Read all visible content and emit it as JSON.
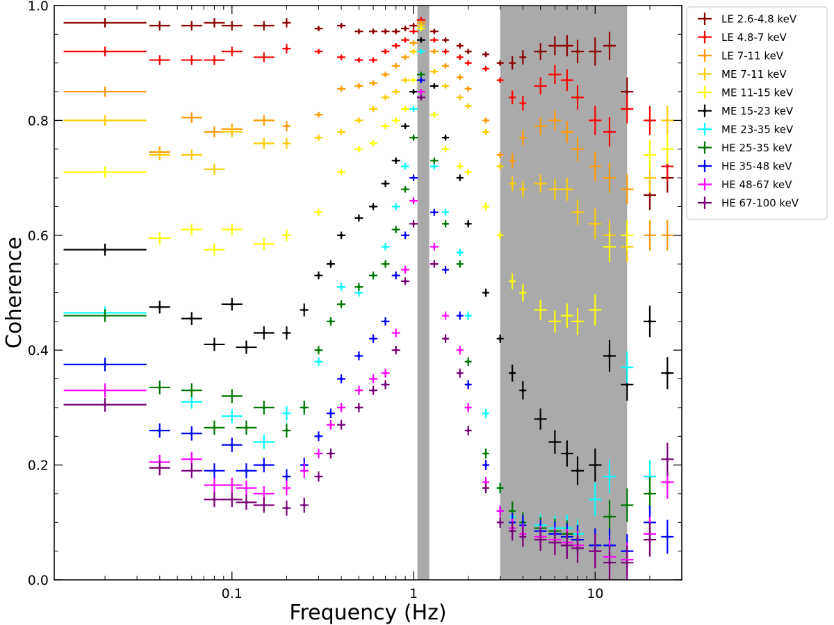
{
  "chart_data": {
    "type": "scatter",
    "xscale": "log",
    "xlabel": "Frequency (Hz)",
    "ylabel": "Coherence",
    "xlim": [
      0.0105,
      30
    ],
    "ylim": [
      0.0,
      1.0
    ],
    "x_ticks": [
      {
        "value": 0.1,
        "label": "0.1"
      },
      {
        "value": 1,
        "label": "1"
      },
      {
        "value": 10,
        "label": "10"
      }
    ],
    "y_ticks": [
      {
        "value": 0.0,
        "label": "0.0"
      },
      {
        "value": 0.2,
        "label": "0.2"
      },
      {
        "value": 0.4,
        "label": "0.4"
      },
      {
        "value": 0.6,
        "label": "0.6"
      },
      {
        "value": 0.8,
        "label": "0.8"
      },
      {
        "value": 1.0,
        "label": "1.0"
      }
    ],
    "shaded_bands": [
      {
        "x_from": 1.05,
        "x_to": 1.22,
        "color": "#aaaaaa"
      },
      {
        "x_from": 3.0,
        "x_to": 15.0,
        "color": "#aaaaaa"
      }
    ],
    "legend_position": "upper right, outside axes",
    "series": [
      {
        "name": "LE 2.6-4.8 keV",
        "color": "#8b0000",
        "x": [
          0.02,
          0.04,
          0.06,
          0.08,
          0.1,
          0.15,
          0.2,
          0.3,
          0.4,
          0.5,
          0.6,
          0.7,
          0.8,
          0.9,
          1.0,
          1.1,
          1.3,
          1.5,
          1.8,
          2.0,
          2.5,
          3.0,
          3.5,
          4.0,
          5.0,
          6.0,
          7.0,
          8.0,
          10,
          12,
          15,
          20,
          25
        ],
        "y": [
          0.97,
          0.965,
          0.965,
          0.97,
          0.965,
          0.965,
          0.97,
          0.96,
          0.965,
          0.955,
          0.955,
          0.955,
          0.955,
          0.96,
          0.965,
          0.975,
          0.955,
          0.94,
          0.93,
          0.92,
          0.915,
          0.9,
          0.9,
          0.91,
          0.92,
          0.93,
          0.93,
          0.92,
          0.92,
          0.93,
          0.85,
          0.67,
          0.7
        ]
      },
      {
        "name": "LE 4.8-7 keV",
        "color": "#ff0000",
        "x": [
          0.02,
          0.04,
          0.06,
          0.08,
          0.1,
          0.15,
          0.2,
          0.3,
          0.4,
          0.5,
          0.6,
          0.7,
          0.8,
          0.9,
          1.0,
          1.1,
          1.3,
          1.5,
          1.8,
          2.0,
          2.5,
          3.0,
          3.5,
          4.0,
          5.0,
          6.0,
          7.0,
          8.0,
          10,
          12,
          15,
          20,
          25
        ],
        "y": [
          0.92,
          0.905,
          0.905,
          0.905,
          0.92,
          0.91,
          0.925,
          0.92,
          0.91,
          0.905,
          0.905,
          0.92,
          0.93,
          0.94,
          0.955,
          0.975,
          0.94,
          0.92,
          0.91,
          0.9,
          0.89,
          0.87,
          0.84,
          0.83,
          0.86,
          0.88,
          0.87,
          0.84,
          0.8,
          0.78,
          0.82,
          0.8,
          0.72
        ]
      },
      {
        "name": "LE 7-11 keV",
        "color": "#ff9900",
        "x": [
          0.02,
          0.04,
          0.06,
          0.08,
          0.1,
          0.15,
          0.2,
          0.3,
          0.4,
          0.5,
          0.6,
          0.7,
          0.8,
          0.9,
          1.0,
          1.1,
          1.3,
          1.5,
          1.8,
          2.0,
          2.5,
          3.0,
          3.5,
          4.0,
          5.0,
          6.0,
          7.0,
          8.0,
          10,
          12,
          15,
          20,
          25
        ],
        "y": [
          0.85,
          0.745,
          0.805,
          0.78,
          0.785,
          0.8,
          0.79,
          0.81,
          0.855,
          0.86,
          0.865,
          0.88,
          0.895,
          0.91,
          0.935,
          0.97,
          0.92,
          0.895,
          0.875,
          0.855,
          0.8,
          0.74,
          0.73,
          0.77,
          0.79,
          0.8,
          0.78,
          0.75,
          0.72,
          0.7,
          0.68,
          0.6,
          0.6
        ]
      },
      {
        "name": "ME 7-11 keV",
        "color": "#ffcc00",
        "x": [
          0.02,
          0.04,
          0.06,
          0.08,
          0.1,
          0.15,
          0.2,
          0.3,
          0.4,
          0.5,
          0.6,
          0.7,
          0.8,
          0.9,
          1.0,
          1.1,
          1.3,
          1.5,
          1.8,
          2.0,
          2.5,
          3.0,
          3.5,
          4.0,
          5.0,
          6.0,
          7.0,
          8.0,
          10,
          12,
          15,
          20,
          25
        ],
        "y": [
          0.8,
          0.74,
          0.74,
          0.715,
          0.78,
          0.76,
          0.76,
          0.77,
          0.78,
          0.8,
          0.82,
          0.84,
          0.85,
          0.87,
          0.92,
          0.965,
          0.885,
          0.86,
          0.84,
          0.825,
          0.78,
          0.72,
          0.69,
          0.68,
          0.69,
          0.68,
          0.68,
          0.64,
          0.62,
          0.6,
          0.58,
          0.7,
          0.8
        ]
      },
      {
        "name": "ME 11-15 keV",
        "color": "#ffff00",
        "x": [
          0.02,
          0.04,
          0.06,
          0.08,
          0.1,
          0.15,
          0.2,
          0.3,
          0.4,
          0.5,
          0.6,
          0.7,
          0.8,
          0.9,
          1.0,
          1.1,
          1.3,
          1.5,
          1.8,
          2.0,
          2.5,
          3.0,
          3.5,
          4.0,
          5.0,
          6.0,
          7.0,
          8.0,
          10,
          12,
          15,
          20,
          25
        ],
        "y": [
          0.71,
          0.595,
          0.61,
          0.575,
          0.61,
          0.585,
          0.6,
          0.64,
          0.71,
          0.75,
          0.76,
          0.79,
          0.8,
          0.82,
          0.87,
          0.96,
          0.81,
          0.75,
          0.72,
          0.71,
          0.65,
          0.6,
          0.52,
          0.5,
          0.47,
          0.45,
          0.46,
          0.45,
          0.47,
          0.58,
          0.6,
          0.74,
          0.75
        ]
      },
      {
        "name": "ME 15-23 keV",
        "color": "#000000",
        "x": [
          0.02,
          0.04,
          0.06,
          0.08,
          0.1,
          0.12,
          0.15,
          0.2,
          0.25,
          0.3,
          0.35,
          0.4,
          0.5,
          0.6,
          0.7,
          0.8,
          0.9,
          1.0,
          1.1,
          1.3,
          1.5,
          1.8,
          2.0,
          2.5,
          3.0,
          3.5,
          4.0,
          5.0,
          6.0,
          7.0,
          8.0,
          10,
          12,
          15,
          20,
          25
        ],
        "y": [
          0.575,
          0.475,
          0.455,
          0.41,
          0.48,
          0.405,
          0.43,
          0.43,
          0.47,
          0.53,
          0.55,
          0.6,
          0.63,
          0.65,
          0.69,
          0.73,
          0.79,
          0.85,
          0.94,
          0.86,
          0.77,
          0.7,
          0.62,
          0.5,
          0.42,
          0.36,
          0.33,
          0.28,
          0.24,
          0.22,
          0.19,
          0.2,
          0.39,
          0.34,
          0.45,
          0.36
        ]
      },
      {
        "name": "ME 23-35 keV",
        "color": "#00ffff",
        "x": [
          0.02,
          0.06,
          0.1,
          0.15,
          0.2,
          0.25,
          0.3,
          0.35,
          0.4,
          0.5,
          0.6,
          0.7,
          0.8,
          0.9,
          1.0,
          1.1,
          1.3,
          1.5,
          1.8,
          2.0,
          2.5,
          3.0,
          3.5,
          4.0,
          5.0,
          6.0,
          7.0,
          8.0,
          10,
          12,
          15,
          20
        ],
        "y": [
          0.465,
          0.31,
          0.285,
          0.24,
          0.29,
          0.3,
          0.38,
          0.45,
          0.51,
          0.5,
          0.53,
          0.58,
          0.65,
          0.72,
          0.82,
          0.92,
          0.72,
          0.64,
          0.57,
          0.46,
          0.29,
          0.16,
          0.11,
          0.1,
          0.095,
          0.09,
          0.09,
          0.08,
          0.14,
          0.18,
          0.37,
          0.18
        ]
      },
      {
        "name": "HE 25-35 keV",
        "color": "#007700",
        "x": [
          0.02,
          0.04,
          0.06,
          0.08,
          0.1,
          0.12,
          0.15,
          0.2,
          0.25,
          0.3,
          0.35,
          0.4,
          0.5,
          0.6,
          0.7,
          0.8,
          0.9,
          1.0,
          1.1,
          1.3,
          1.5,
          1.8,
          2.0,
          2.5,
          3.0,
          3.5,
          4.0,
          5.0,
          6.0,
          7.0,
          8.0,
          10,
          12,
          15,
          20
        ],
        "y": [
          0.46,
          0.335,
          0.33,
          0.265,
          0.32,
          0.265,
          0.3,
          0.26,
          0.3,
          0.4,
          0.45,
          0.48,
          0.51,
          0.53,
          0.55,
          0.61,
          0.68,
          0.77,
          0.88,
          0.73,
          0.62,
          0.55,
          0.38,
          0.22,
          0.16,
          0.12,
          0.1,
          0.09,
          0.085,
          0.08,
          0.07,
          0.06,
          0.11,
          0.13,
          0.15
        ]
      },
      {
        "name": "HE 35-48 keV",
        "color": "#0000ff",
        "x": [
          0.02,
          0.04,
          0.06,
          0.08,
          0.1,
          0.12,
          0.15,
          0.2,
          0.25,
          0.3,
          0.35,
          0.4,
          0.5,
          0.6,
          0.7,
          0.8,
          0.9,
          1.0,
          1.1,
          1.3,
          1.5,
          1.8,
          2.0,
          2.5,
          3.0,
          3.5,
          4.0,
          5.0,
          6.0,
          7.0,
          8.0,
          10,
          12,
          15,
          20,
          25
        ],
        "y": [
          0.375,
          0.26,
          0.255,
          0.19,
          0.235,
          0.19,
          0.2,
          0.18,
          0.2,
          0.25,
          0.29,
          0.35,
          0.39,
          0.42,
          0.45,
          0.53,
          0.6,
          0.7,
          0.87,
          0.64,
          0.54,
          0.46,
          0.34,
          0.2,
          0.12,
          0.1,
          0.095,
          0.085,
          0.08,
          0.075,
          0.07,
          0.06,
          0.06,
          0.05,
          0.1,
          0.075
        ]
      },
      {
        "name": "HE 48-67 keV",
        "color": "#ff00ff",
        "x": [
          0.02,
          0.04,
          0.06,
          0.08,
          0.1,
          0.12,
          0.15,
          0.2,
          0.25,
          0.3,
          0.35,
          0.4,
          0.5,
          0.6,
          0.7,
          0.8,
          0.9,
          1.0,
          1.1,
          1.3,
          1.5,
          1.8,
          2.0,
          2.5,
          3.0,
          3.5,
          4.0,
          5.0,
          6.0,
          7.0,
          8.0,
          10,
          12,
          15,
          20,
          25
        ],
        "y": [
          0.33,
          0.205,
          0.21,
          0.165,
          0.165,
          0.16,
          0.15,
          0.16,
          0.19,
          0.22,
          0.27,
          0.3,
          0.33,
          0.35,
          0.36,
          0.43,
          0.54,
          0.66,
          0.85,
          0.58,
          0.46,
          0.4,
          0.3,
          0.17,
          0.12,
          0.09,
          0.08,
          0.075,
          0.07,
          0.065,
          0.06,
          0.05,
          0.04,
          0.035,
          0.08,
          0.17
        ]
      },
      {
        "name": "HE 67-100 keV",
        "color": "#770077",
        "x": [
          0.02,
          0.04,
          0.06,
          0.08,
          0.1,
          0.12,
          0.15,
          0.2,
          0.25,
          0.3,
          0.35,
          0.4,
          0.5,
          0.6,
          0.7,
          0.8,
          0.9,
          1.0,
          1.1,
          1.3,
          1.5,
          1.8,
          2.0,
          2.5,
          3.0,
          3.5,
          4.0,
          5.0,
          6.0,
          7.0,
          8.0,
          10,
          12,
          15,
          20,
          25
        ],
        "y": [
          0.305,
          0.195,
          0.19,
          0.14,
          0.14,
          0.135,
          0.13,
          0.125,
          0.13,
          0.18,
          0.22,
          0.27,
          0.3,
          0.33,
          0.34,
          0.4,
          0.52,
          0.62,
          0.84,
          0.55,
          0.42,
          0.36,
          0.26,
          0.16,
          0.1,
          0.085,
          0.075,
          0.07,
          0.065,
          0.06,
          0.055,
          0.05,
          0.03,
          0.03,
          0.07,
          0.21
        ]
      }
    ]
  }
}
